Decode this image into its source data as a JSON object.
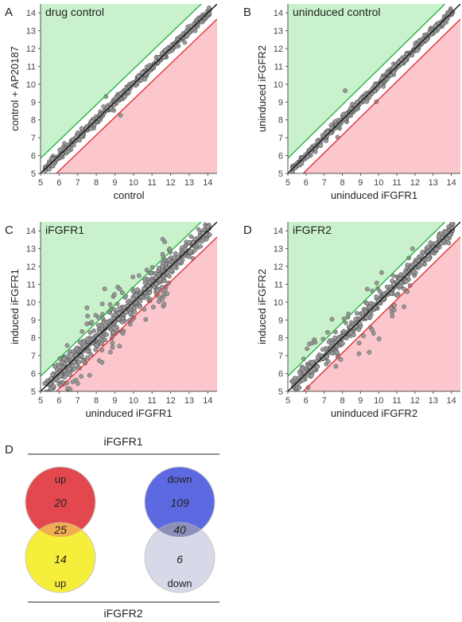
{
  "colors": {
    "up_region": "#c9f2cc",
    "down_region": "#fbc6cc",
    "up_line": "#2db34a",
    "down_line": "#e0343a",
    "diagonal": "#111111",
    "point_fill": "#9a9a9a",
    "point_stroke": "#444444",
    "venn_up_ifgfr1": "#e2484e",
    "venn_up_ifgfr2": "#f5ee3a",
    "venn_up_overlap": "#f2ad52",
    "venn_down_ifgfr1": "#5d69e0",
    "venn_down_ifgfr2": "#d7d8e8",
    "venn_down_overlap": "#8c90b8"
  },
  "chart_data": [
    {
      "type": "scatter",
      "panel": "A",
      "title": "drug control",
      "xlabel": "control",
      "ylabel": "control + AP20187",
      "xlim": [
        5,
        14.5
      ],
      "ylim": [
        5,
        14.5
      ],
      "xticks": [
        5,
        6,
        7,
        8,
        9,
        10,
        11,
        12,
        13,
        14
      ],
      "yticks": [
        5,
        6,
        7,
        8,
        9,
        10,
        11,
        12,
        13,
        14
      ],
      "threshold_offset": 0.85,
      "spread": 0.12,
      "outlier_count": 2
    },
    {
      "type": "scatter",
      "panel": "B",
      "title": "uninduced control",
      "xlabel": "uninduced iFGFR1",
      "ylabel": "uninduced iFGFR2",
      "xlim": [
        5,
        14.5
      ],
      "ylim": [
        5,
        14.5
      ],
      "xticks": [
        5,
        6,
        7,
        8,
        9,
        10,
        11,
        12,
        13,
        14
      ],
      "yticks": [
        5,
        6,
        7,
        8,
        9,
        10,
        11,
        12,
        13,
        14
      ],
      "threshold_offset": 0.85,
      "spread": 0.13,
      "outlier_count": 3
    },
    {
      "type": "scatter",
      "panel": "C",
      "title": "iFGFR1",
      "xlabel": "uninduced iFGFR1",
      "ylabel": "induced iFGFR1",
      "xlim": [
        5,
        14.5
      ],
      "ylim": [
        5,
        14.5
      ],
      "xticks": [
        5,
        6,
        7,
        8,
        9,
        10,
        11,
        12,
        13,
        14
      ],
      "yticks": [
        5,
        6,
        7,
        8,
        9,
        10,
        11,
        12,
        13,
        14
      ],
      "threshold_offset": 0.85,
      "spread": 0.26,
      "outlier_count": 150
    },
    {
      "type": "scatter",
      "panel": "D",
      "title": "iFGFR2",
      "xlabel": "uninduced iFGFR2",
      "ylabel": "induced iFGFR2",
      "xlim": [
        5,
        14.5
      ],
      "ylim": [
        5,
        14.5
      ],
      "xticks": [
        5,
        6,
        7,
        8,
        9,
        10,
        11,
        12,
        13,
        14
      ],
      "yticks": [
        5,
        6,
        7,
        8,
        9,
        10,
        11,
        12,
        13,
        14
      ],
      "threshold_offset": 0.85,
      "spread": 0.2,
      "outlier_count": 60
    }
  ],
  "venn": {
    "panel": "D",
    "top_label": "iFGFR1",
    "bottom_label": "iFGFR2",
    "up": {
      "top_label": "up",
      "bottom_label": "up",
      "only_top": "20",
      "overlap": "25",
      "only_bottom": "14"
    },
    "down": {
      "top_label": "down",
      "bottom_label": "down",
      "only_top": "109",
      "overlap": "40",
      "only_bottom": "6"
    }
  }
}
